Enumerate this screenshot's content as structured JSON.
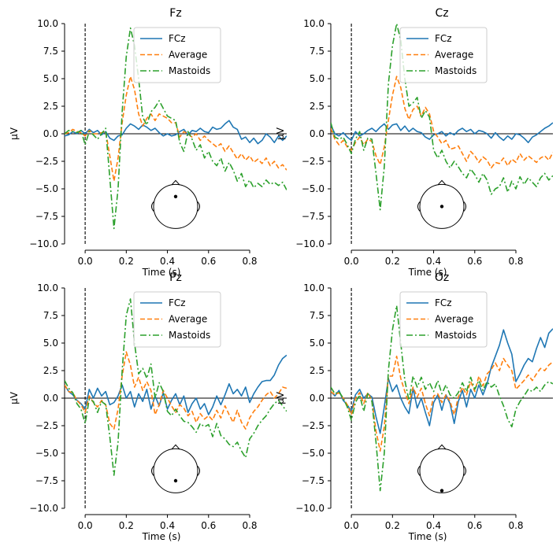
{
  "figure": {
    "title": ""
  },
  "chart_data": [
    {
      "type": "line",
      "title": "Fz",
      "xlabel": "Time (s)",
      "ylabel": "µV",
      "xlim": [
        -0.1,
        0.98
      ],
      "ylim": [
        -10,
        10
      ],
      "xticks": [
        0.0,
        0.2,
        0.4,
        0.6,
        0.8
      ],
      "xtick_labels": [
        "0.0",
        "0.2",
        "0.4",
        "0.6",
        "0.8"
      ],
      "yticks": [
        -10,
        -7.5,
        -5,
        -2.5,
        0,
        2.5,
        5,
        7.5,
        10
      ],
      "ytick_labels": [
        "−10.0",
        "−7.5",
        "−5.0",
        "−2.5",
        "0.0",
        "2.5",
        "5.0",
        "7.5",
        "10.0"
      ],
      "legend": [
        "FCz",
        "Average",
        "Mastoids"
      ],
      "legend_position": "top-center",
      "sensor_position": "front",
      "x": [
        -0.1,
        -0.08,
        -0.06,
        -0.04,
        -0.02,
        0.0,
        0.02,
        0.04,
        0.06,
        0.08,
        0.1,
        0.12,
        0.14,
        0.16,
        0.18,
        0.2,
        0.22,
        0.24,
        0.26,
        0.28,
        0.3,
        0.32,
        0.34,
        0.36,
        0.38,
        0.4,
        0.42,
        0.44,
        0.46,
        0.48,
        0.5,
        0.52,
        0.54,
        0.56,
        0.58,
        0.6,
        0.62,
        0.64,
        0.66,
        0.68,
        0.7,
        0.72,
        0.74,
        0.76,
        0.78,
        0.8,
        0.82,
        0.84,
        0.86,
        0.88,
        0.9,
        0.92,
        0.94,
        0.96,
        0.98
      ],
      "series": [
        {
          "name": "FCz",
          "values": [
            -0.2,
            -0.1,
            0.2,
            0.0,
            0.3,
            0.0,
            0.4,
            0.1,
            0.3,
            -0.1,
            0.2,
            -0.4,
            -0.6,
            -0.2,
            -0.1,
            0.5,
            0.9,
            0.7,
            0.4,
            0.8,
            0.6,
            0.3,
            0.5,
            0.1,
            -0.2,
            0.0,
            -0.2,
            -0.1,
            0.2,
            0.4,
            -0.1,
            0.3,
            0.2,
            0.5,
            0.2,
            0.1,
            0.6,
            0.4,
            0.5,
            0.9,
            1.2,
            0.6,
            0.4,
            -0.5,
            -0.3,
            -0.8,
            -0.4,
            -0.9,
            -0.6,
            0.0,
            -0.3,
            -0.8,
            -0.2,
            -0.6,
            -0.2
          ]
        },
        {
          "name": "Average",
          "values": [
            0.0,
            0.1,
            0.4,
            0.2,
            0.1,
            -0.2,
            0.3,
            0.0,
            0.0,
            0.1,
            0.2,
            -2.0,
            -4.3,
            -2.2,
            1.0,
            3.5,
            5.2,
            4.0,
            1.8,
            0.7,
            1.4,
            1.8,
            1.2,
            1.8,
            1.6,
            1.4,
            1.0,
            1.0,
            -0.3,
            0.2,
            0.0,
            -0.3,
            0.0,
            -0.6,
            -0.2,
            -0.6,
            -0.9,
            -1.2,
            -0.9,
            -1.6,
            -1.1,
            -1.7,
            -2.3,
            -1.8,
            -2.4,
            -2.0,
            -2.6,
            -2.3,
            -2.7,
            -2.2,
            -2.9,
            -2.5,
            -3.1,
            -2.8,
            -3.3
          ]
        },
        {
          "name": "Mastoids",
          "values": [
            0.0,
            0.3,
            0.2,
            0.1,
            0.3,
            -1.0,
            0.2,
            -0.1,
            -0.5,
            0.0,
            0.5,
            -4.0,
            -8.6,
            -5.0,
            2.0,
            7.0,
            9.6,
            8.0,
            5.0,
            1.5,
            0.8,
            2.0,
            2.4,
            3.0,
            2.3,
            1.6,
            1.4,
            1.2,
            -0.8,
            -1.6,
            0.2,
            -0.5,
            -1.5,
            -1.0,
            -2.2,
            -1.6,
            -2.5,
            -2.9,
            -2.2,
            -3.4,
            -2.6,
            -3.3,
            -4.3,
            -3.6,
            -4.8,
            -4.2,
            -4.9,
            -4.5,
            -4.8,
            -4.2,
            -4.6,
            -4.4,
            -4.7,
            -4.4,
            -5.1
          ]
        }
      ]
    },
    {
      "type": "line",
      "title": "Cz",
      "xlabel": "Time (s)",
      "ylabel": "µV",
      "xlim": [
        -0.1,
        0.98
      ],
      "ylim": [
        -10,
        10
      ],
      "xticks": [
        0.0,
        0.2,
        0.4,
        0.6,
        0.8
      ],
      "xtick_labels": [
        "0.0",
        "0.2",
        "0.4",
        "0.6",
        "0.8"
      ],
      "yticks": [
        -10,
        -7.5,
        -5,
        -2.5,
        0,
        2.5,
        5,
        7.5,
        10
      ],
      "ytick_labels": [
        "−10.0",
        "−7.5",
        "−5.0",
        "−2.5",
        "0.0",
        "2.5",
        "5.0",
        "7.5",
        "10.0"
      ],
      "legend": [
        "FCz",
        "Average",
        "Mastoids"
      ],
      "legend_position": "top-center",
      "sensor_position": "center",
      "x": [
        -0.1,
        -0.08,
        -0.06,
        -0.04,
        -0.02,
        0.0,
        0.02,
        0.04,
        0.06,
        0.08,
        0.1,
        0.12,
        0.14,
        0.16,
        0.18,
        0.2,
        0.22,
        0.24,
        0.26,
        0.28,
        0.3,
        0.32,
        0.34,
        0.36,
        0.38,
        0.4,
        0.42,
        0.44,
        0.46,
        0.48,
        0.5,
        0.52,
        0.54,
        0.56,
        0.58,
        0.6,
        0.62,
        0.64,
        0.66,
        0.68,
        0.7,
        0.72,
        0.74,
        0.76,
        0.78,
        0.8,
        0.82,
        0.84,
        0.86,
        0.88,
        0.9,
        0.92,
        0.94,
        0.96,
        0.98
      ],
      "series": [
        {
          "name": "FCz",
          "values": [
            0.8,
            0.0,
            -0.2,
            0.1,
            -0.3,
            -0.6,
            0.2,
            -0.2,
            0.0,
            0.3,
            0.5,
            0.2,
            0.6,
            0.9,
            0.4,
            0.8,
            0.9,
            0.3,
            0.7,
            0.2,
            0.5,
            0.2,
            0.1,
            -0.3,
            -0.5,
            -0.1,
            0.0,
            0.2,
            -0.2,
            0.1,
            -0.1,
            0.3,
            0.5,
            0.2,
            0.4,
            0.0,
            0.3,
            0.2,
            0.0,
            -0.4,
            0.1,
            -0.3,
            -0.6,
            -0.2,
            -0.5,
            0.0,
            -0.1,
            -0.4,
            -0.8,
            -0.3,
            -0.1,
            0.2,
            0.5,
            0.7,
            1.0
          ]
        },
        {
          "name": "Average",
          "values": [
            0.5,
            -0.5,
            -1.0,
            -0.6,
            -1.2,
            -1.5,
            -0.8,
            -0.3,
            -1.0,
            -0.5,
            -0.7,
            -2.0,
            -2.8,
            -1.2,
            1.2,
            3.5,
            5.2,
            4.2,
            2.3,
            1.3,
            2.2,
            2.5,
            1.6,
            2.4,
            1.8,
            0.2,
            -0.3,
            -0.9,
            -0.6,
            -1.4,
            -1.3,
            -1.1,
            -1.8,
            -2.5,
            -1.6,
            -2.0,
            -2.6,
            -2.1,
            -2.4,
            -3.1,
            -2.6,
            -2.7,
            -2.2,
            -2.9,
            -2.3,
            -2.6,
            -1.8,
            -2.4,
            -2.0,
            -2.3,
            -2.6,
            -2.2,
            -2.0,
            -2.4,
            -1.7
          ]
        },
        {
          "name": "Mastoids",
          "values": [
            1.0,
            -0.3,
            -0.5,
            -0.3,
            -1.0,
            -1.8,
            -0.5,
            0.2,
            -1.5,
            -0.4,
            -0.5,
            -3.6,
            -6.9,
            -3.0,
            4.5,
            8.0,
            10.0,
            8.5,
            5.0,
            2.5,
            2.8,
            3.3,
            1.4,
            2.1,
            1.5,
            -1.5,
            -2.2,
            -1.5,
            -2.5,
            -3.1,
            -2.5,
            -3.0,
            -3.6,
            -4.0,
            -3.2,
            -3.7,
            -4.4,
            -3.6,
            -4.2,
            -5.5,
            -5.0,
            -4.8,
            -4.0,
            -5.3,
            -4.3,
            -5.0,
            -3.9,
            -4.6,
            -4.0,
            -4.4,
            -4.8,
            -4.0,
            -3.6,
            -4.2,
            -3.8
          ]
        }
      ]
    },
    {
      "type": "line",
      "title": "Pz",
      "xlabel": "Time (s)",
      "ylabel": "µV",
      "xlim": [
        -0.1,
        0.98
      ],
      "ylim": [
        -10,
        10
      ],
      "xticks": [
        0.0,
        0.2,
        0.4,
        0.6,
        0.8
      ],
      "xtick_labels": [
        "0.0",
        "0.2",
        "0.4",
        "0.6",
        "0.8"
      ],
      "yticks": [
        -10,
        -7.5,
        -5,
        -2.5,
        0,
        2.5,
        5,
        7.5,
        10
      ],
      "ytick_labels": [
        "−10.0",
        "−7.5",
        "−5.0",
        "−2.5",
        "0.0",
        "2.5",
        "5.0",
        "7.5",
        "10.0"
      ],
      "legend": [
        "FCz",
        "Average",
        "Mastoids"
      ],
      "legend_position": "top-center",
      "sensor_position": "back",
      "x": [
        -0.1,
        -0.08,
        -0.06,
        -0.04,
        -0.02,
        0.0,
        0.02,
        0.04,
        0.06,
        0.08,
        0.1,
        0.12,
        0.14,
        0.16,
        0.18,
        0.2,
        0.22,
        0.24,
        0.26,
        0.28,
        0.3,
        0.32,
        0.34,
        0.36,
        0.38,
        0.4,
        0.42,
        0.44,
        0.46,
        0.48,
        0.5,
        0.52,
        0.54,
        0.56,
        0.58,
        0.6,
        0.62,
        0.64,
        0.66,
        0.68,
        0.7,
        0.72,
        0.74,
        0.76,
        0.78,
        0.8,
        0.82,
        0.84,
        0.86,
        0.88,
        0.9,
        0.92,
        0.94,
        0.96,
        0.98
      ],
      "series": [
        {
          "name": "FCz",
          "values": [
            1.2,
            0.6,
            0.3,
            -0.2,
            -0.5,
            -1.0,
            0.8,
            0.0,
            0.9,
            0.2,
            0.6,
            -0.6,
            -0.4,
            0.2,
            1.2,
            0.0,
            0.6,
            -0.8,
            0.4,
            -0.3,
            0.8,
            -1.0,
            0.2,
            -0.7,
            0.5,
            -1.0,
            -0.2,
            0.4,
            -0.6,
            0.2,
            -1.3,
            -0.5,
            0.0,
            -1.0,
            -0.5,
            -1.5,
            -0.8,
            0.2,
            -0.6,
            0.3,
            1.3,
            0.4,
            0.8,
            0.2,
            1.0,
            -0.4,
            0.4,
            1.0,
            1.5,
            1.6,
            1.6,
            2.1,
            3.0,
            3.6,
            3.9
          ]
        },
        {
          "name": "Average",
          "values": [
            1.2,
            0.6,
            0.5,
            -0.2,
            -0.6,
            -1.3,
            0.2,
            -0.4,
            -0.8,
            -0.2,
            -0.6,
            -2.3,
            -2.8,
            -1.0,
            2.0,
            4.2,
            3.0,
            1.0,
            1.9,
            0.7,
            1.5,
            0.7,
            -1.5,
            -0.6,
            0.7,
            0.0,
            -0.7,
            -1.3,
            -0.6,
            -0.9,
            -1.6,
            -1.2,
            -2.2,
            -1.4,
            -1.9,
            -1.6,
            -2.0,
            -1.1,
            -1.8,
            -0.7,
            -1.5,
            -2.2,
            -1.1,
            -2.2,
            -2.8,
            -1.8,
            -1.2,
            -0.8,
            -0.2,
            0.3,
            0.6,
            0.0,
            0.4,
            1.0,
            0.9
          ]
        },
        {
          "name": "Mastoids",
          "values": [
            1.6,
            0.9,
            0.5,
            -0.5,
            -1.0,
            -2.3,
            -0.1,
            -0.3,
            -1.3,
            -0.3,
            -0.6,
            -3.5,
            -7.0,
            -4.0,
            2.5,
            7.5,
            9.0,
            5.0,
            2.2,
            2.7,
            1.8,
            3.1,
            0.0,
            1.4,
            0.6,
            -1.2,
            -1.6,
            -1.0,
            -1.6,
            -2.1,
            -2.2,
            -2.6,
            -3.1,
            -2.3,
            -2.6,
            -2.4,
            -3.5,
            -2.3,
            -3.4,
            -3.7,
            -4.2,
            -4.4,
            -4.0,
            -4.8,
            -5.4,
            -3.7,
            -3.2,
            -2.5,
            -2.0,
            -1.6,
            -1.0,
            -0.5,
            -0.2,
            -0.7,
            -1.2
          ]
        }
      ]
    },
    {
      "type": "line",
      "title": "Oz",
      "xlabel": "Time (s)",
      "ylabel": "µV",
      "xlim": [
        -0.1,
        0.98
      ],
      "ylim": [
        -10,
        10
      ],
      "xticks": [
        0.0,
        0.2,
        0.4,
        0.6,
        0.8
      ],
      "xtick_labels": [
        "0.0",
        "0.2",
        "0.4",
        "0.6",
        "0.8"
      ],
      "yticks": [
        -10,
        -7.5,
        -5,
        -2.5,
        0,
        2.5,
        5,
        7.5,
        10
      ],
      "ytick_labels": [
        "−10.0",
        "−7.5",
        "−5.0",
        "−2.5",
        "0.0",
        "2.5",
        "5.0",
        "7.5",
        "10.0"
      ],
      "legend": [
        "FCz",
        "Average",
        "Mastoids"
      ],
      "legend_position": "top-center",
      "sensor_position": "occipital",
      "x": [
        -0.1,
        -0.08,
        -0.06,
        -0.04,
        -0.02,
        0.0,
        0.02,
        0.04,
        0.06,
        0.08,
        0.1,
        0.12,
        0.14,
        0.16,
        0.18,
        0.2,
        0.22,
        0.24,
        0.26,
        0.28,
        0.3,
        0.32,
        0.34,
        0.36,
        0.38,
        0.4,
        0.42,
        0.44,
        0.46,
        0.48,
        0.5,
        0.52,
        0.54,
        0.56,
        0.58,
        0.6,
        0.62,
        0.64,
        0.66,
        0.68,
        0.7,
        0.72,
        0.74,
        0.76,
        0.78,
        0.8,
        0.82,
        0.84,
        0.86,
        0.88,
        0.9,
        0.92,
        0.94,
        0.96,
        0.98
      ],
      "series": [
        {
          "name": "FCz",
          "values": [
            0.6,
            0.2,
            0.7,
            -0.2,
            -0.6,
            -1.2,
            0.3,
            0.8,
            0.0,
            0.4,
            0.1,
            -1.7,
            -3.2,
            -0.8,
            1.8,
            0.6,
            1.2,
            0.0,
            -0.8,
            -1.4,
            0.9,
            -0.9,
            0.0,
            -1.3,
            -2.5,
            -0.4,
            0.3,
            -1.1,
            0.3,
            -0.5,
            -2.3,
            -0.3,
            0.7,
            -0.8,
            0.8,
            0.0,
            1.2,
            0.3,
            1.3,
            2.8,
            3.8,
            4.8,
            6.2,
            5.0,
            4.0,
            1.5,
            2.2,
            3.0,
            3.6,
            3.3,
            4.5,
            5.5,
            4.6,
            5.9,
            6.3
          ]
        },
        {
          "name": "Average",
          "values": [
            0.6,
            0.3,
            0.5,
            0.0,
            -0.6,
            -1.5,
            0.0,
            0.5,
            -0.5,
            0.5,
            -0.2,
            -3.0,
            -4.8,
            -2.6,
            2.0,
            2.0,
            3.8,
            1.8,
            0.6,
            -0.5,
            1.0,
            0.1,
            0.9,
            -0.5,
            -1.6,
            0.2,
            0.4,
            -0.4,
            0.3,
            -0.3,
            -1.5,
            0.1,
            1.0,
            0.3,
            1.5,
            0.6,
            2.0,
            1.1,
            2.2,
            2.6,
            3.2,
            2.5,
            3.6,
            3.0,
            2.5,
            0.8,
            1.2,
            1.6,
            2.1,
            1.6,
            2.2,
            2.7,
            2.5,
            3.0,
            3.3
          ]
        },
        {
          "name": "Mastoids",
          "values": [
            1.0,
            0.4,
            0.6,
            0.0,
            -0.8,
            -2.0,
            -0.4,
            0.3,
            -1.2,
            0.4,
            -0.3,
            -4.0,
            -8.4,
            -5.0,
            2.5,
            6.2,
            8.4,
            5.0,
            1.6,
            -0.2,
            2.0,
            1.0,
            1.9,
            0.8,
            1.4,
            0.6,
            1.6,
            0.4,
            1.2,
            0.3,
            0.0,
            0.5,
            1.4,
            0.6,
            1.9,
            0.8,
            1.6,
            0.7,
            1.5,
            1.0,
            1.3,
            0.2,
            -0.7,
            -1.9,
            -2.6,
            -1.0,
            -0.3,
            0.2,
            0.8,
            0.6,
            1.0,
            0.6,
            1.2,
            1.5,
            1.3
          ]
        }
      ]
    }
  ]
}
